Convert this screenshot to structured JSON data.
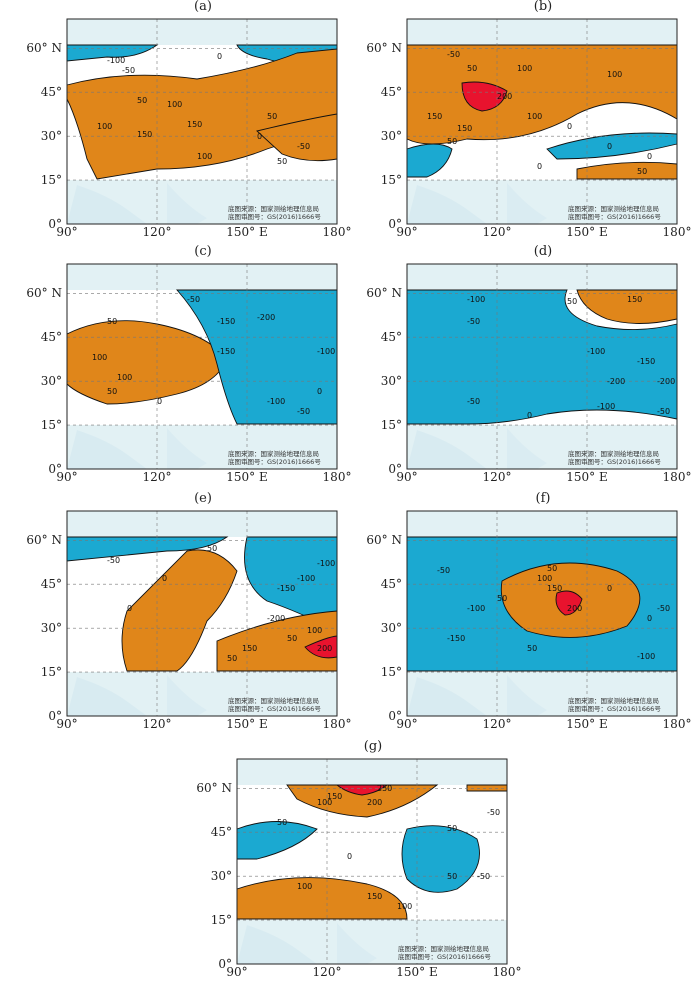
{
  "figure": {
    "panels": [
      {
        "id": "a",
        "label": "(a)"
      },
      {
        "id": "b",
        "label": "(b)"
      },
      {
        "id": "c",
        "label": "(c)"
      },
      {
        "id": "d",
        "label": "(d)"
      },
      {
        "id": "e",
        "label": "(e)"
      },
      {
        "id": "f",
        "label": "(f)"
      },
      {
        "id": "g",
        "label": "(g)"
      }
    ],
    "y_ticks": [
      "60° N",
      "45°",
      "30°",
      "15°",
      "0°"
    ],
    "x_ticks": [
      "90°",
      "120°",
      "150° E",
      "180°"
    ],
    "credit_line1": "底图来源：国家测绘地理信息局",
    "credit_line2": "底图审图号：GS(2016)1666号",
    "colors": {
      "positive": "#e0861a",
      "strong_positive": "#e8132e",
      "negative": "#1ba9d1",
      "land": "#d6eaf0",
      "ocean_band": "#e2f1f4"
    },
    "contour_labels": {
      "a": [
        "-100",
        "-50",
        "0",
        "50",
        "100",
        "150",
        "100",
        "150",
        "100",
        "50",
        "0",
        "-50",
        "50"
      ],
      "b": [
        "-50",
        "50",
        "100",
        "100",
        "200",
        "150",
        "100",
        "150",
        "50",
        "0",
        "0",
        "0",
        "50",
        "0"
      ],
      "c": [
        "-50",
        "50",
        "100",
        "100",
        "50",
        "0",
        "-150",
        "-200",
        "-150",
        "-100",
        "-100",
        "-50",
        "0"
      ],
      "d": [
        "-100",
        "-50",
        "50",
        "150",
        "-100",
        "-200",
        "-150",
        "-200",
        "-50",
        "-100",
        "-50",
        "0"
      ],
      "e": [
        "-50",
        "0",
        "50",
        "-100",
        "-150",
        "-200",
        "-100",
        "100",
        "50",
        "50",
        "150",
        "200",
        "0"
      ],
      "f": [
        "-50",
        "-100",
        "-150",
        "50",
        "100",
        "150",
        "200",
        "0",
        "-50",
        "50",
        "-100",
        "50",
        "0"
      ],
      "g": [
        "250",
        "200",
        "150",
        "100",
        "50",
        "0",
        "50",
        "-50",
        "100",
        "150",
        "100",
        "-50",
        "50"
      ]
    }
  }
}
